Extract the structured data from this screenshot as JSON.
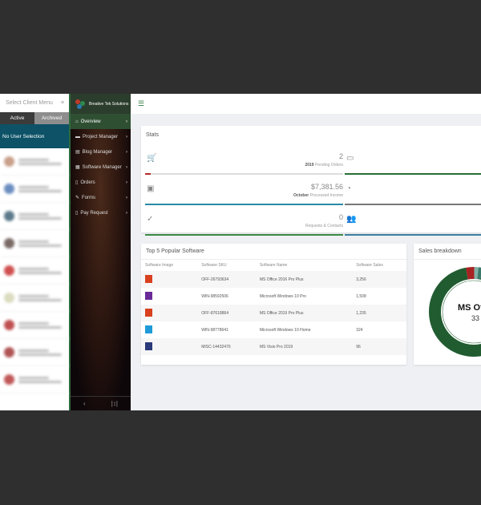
{
  "client_menu": {
    "title": "Select Client Menu",
    "close_icon": "close-icon",
    "tabs": [
      "Active",
      "Archived"
    ],
    "selection": "No User Selection"
  },
  "sidebar": {
    "brand": "Breative Tek Solutions",
    "items": [
      {
        "label": "Overview",
        "icon": "home-icon",
        "glyph": "⌂"
      },
      {
        "label": "Project Manager",
        "icon": "folder-icon",
        "glyph": "▬"
      },
      {
        "label": "Blog Manager",
        "icon": "blog-icon",
        "glyph": "▤"
      },
      {
        "label": "Software Manager",
        "icon": "grid-icon",
        "glyph": "▦"
      },
      {
        "label": "Orders",
        "icon": "clipboard-icon",
        "glyph": "▯"
      },
      {
        "label": "Forms",
        "icon": "edit-icon",
        "glyph": "✎"
      },
      {
        "label": "Pay Request",
        "icon": "clipboard-icon",
        "glyph": "▯"
      }
    ],
    "footer": [
      "‹",
      "|↕|"
    ]
  },
  "topbar": {
    "menu_icon": "☰"
  },
  "stats": {
    "title": "Stats",
    "items": [
      {
        "icon": "cart-icon",
        "glyph": "🛒",
        "value": "2",
        "sub_bold": "2019",
        "sub": "Pending Orders",
        "color": "#b52a2a",
        "progress": 0.03
      },
      {
        "icon": "money-icon",
        "glyph": "▣",
        "value": "$7,381.56",
        "sub_bold": "October",
        "sub": "Processed Income",
        "color": "#2a8aa8",
        "progress": 1
      },
      {
        "icon": "check-icon",
        "glyph": "✓",
        "value": "0",
        "sub_bold": "",
        "sub": "Requests & Contacts",
        "color": "#3a8a45",
        "progress": 1
      },
      {
        "icon": "card-icon",
        "glyph": "▭",
        "color": "#2a6e35"
      },
      {
        "icon": "piggy-bank-icon",
        "glyph": "◔",
        "color": "#777777"
      },
      {
        "icon": "users-icon",
        "glyph": "👥",
        "color": "#3a7fa0"
      }
    ]
  },
  "top5": {
    "title": "Top 5 Popular Software",
    "columns": [
      "Software Image",
      "Software SKU",
      "Software Name",
      "Software Sales"
    ],
    "rows": [
      {
        "sku": "OFF-26793634",
        "name": "MS Office 2016 Pro Plus",
        "sales": "3,256",
        "color": "#d9401e"
      },
      {
        "sku": "WIN-98592506",
        "name": "Microsoft Windows 10 Pro",
        "sales": "1,508",
        "color": "#6a2a9a"
      },
      {
        "sku": "OFF-87618864",
        "name": "MS Office 2019 Pro Plus",
        "sales": "1,235",
        "color": "#d9401e"
      },
      {
        "sku": "WIN-98778641",
        "name": "Microsoft Windows 10 Home",
        "sales": "324",
        "color": "#1e9ad9"
      },
      {
        "sku": "MISC-14432476",
        "name": "MS Visio Pro 2019",
        "sales": "96",
        "color": "#2a3a7a"
      }
    ]
  },
  "sales": {
    "title": "Sales breakdown",
    "center_label": "MS Of",
    "center_value": "33",
    "chart_data": {
      "type": "pie",
      "slices": [
        {
          "color": "#215c30",
          "share": 0.94
        },
        {
          "color": "#a82323",
          "share": 0.03
        },
        {
          "color": "#7fb0a8",
          "share": 0.015
        },
        {
          "color": "#3a7a6a",
          "share": 0.015
        }
      ]
    }
  }
}
